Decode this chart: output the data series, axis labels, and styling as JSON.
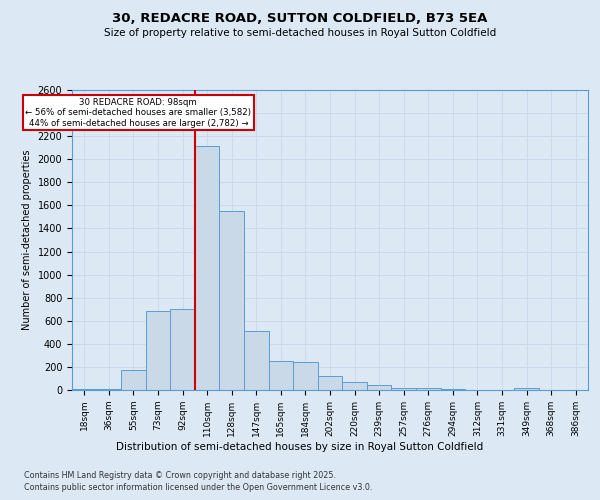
{
  "title": "30, REDACRE ROAD, SUTTON COLDFIELD, B73 5EA",
  "subtitle": "Size of property relative to semi-detached houses in Royal Sutton Coldfield",
  "xlabel": "Distribution of semi-detached houses by size in Royal Sutton Coldfield",
  "ylabel": "Number of semi-detached properties",
  "categories": [
    "18sqm",
    "36sqm",
    "55sqm",
    "73sqm",
    "92sqm",
    "110sqm",
    "128sqm",
    "147sqm",
    "165sqm",
    "184sqm",
    "202sqm",
    "220sqm",
    "239sqm",
    "257sqm",
    "276sqm",
    "294sqm",
    "312sqm",
    "331sqm",
    "349sqm",
    "368sqm",
    "386sqm"
  ],
  "values": [
    5,
    5,
    175,
    685,
    700,
    2115,
    1550,
    510,
    250,
    245,
    125,
    70,
    40,
    20,
    15,
    5,
    2,
    2,
    20,
    2,
    2
  ],
  "bar_color": "#c9d9e8",
  "bar_edge_color": "#5b9bd5",
  "bar_width": 1.0,
  "red_line_color": "#cc0000",
  "annotation_text_line1": "30 REDACRE ROAD: 98sqm",
  "annotation_text_line2": "← 56% of semi-detached houses are smaller (3,582)",
  "annotation_text_line3": "44% of semi-detached houses are larger (2,782) →",
  "annotation_box_color": "#ffffff",
  "annotation_box_edge": "#cc0000",
  "grid_color": "#c8d8e8",
  "background_color": "#dce9f5",
  "plot_bg_color": "#dce9f5",
  "ylim": [
    0,
    2600
  ],
  "red_line_index": 4.5,
  "footer_line1": "Contains HM Land Registry data © Crown copyright and database right 2025.",
  "footer_line2": "Contains public sector information licensed under the Open Government Licence v3.0."
}
